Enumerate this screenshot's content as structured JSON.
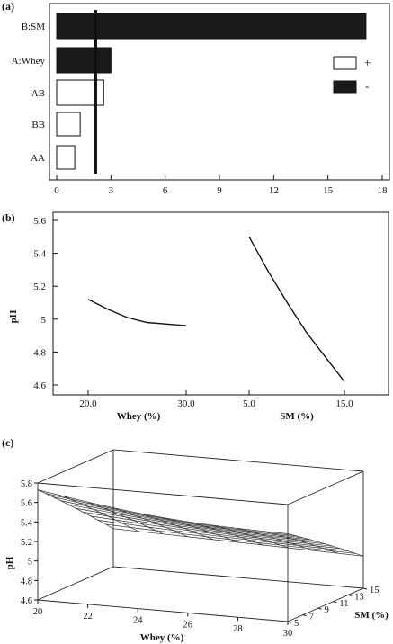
{
  "panels": [
    {
      "label": "(a)",
      "chart_data": {
        "type": "bar",
        "orientation": "horizontal",
        "categories": [
          "B:SM",
          "A:Whey",
          "AB",
          "BB",
          "AA"
        ],
        "values": [
          17.1,
          3.0,
          2.6,
          1.3,
          1.0
        ],
        "signs": [
          "-",
          "-",
          "+",
          "+",
          "+"
        ],
        "reference_line": 2.16,
        "xlim": [
          0,
          18
        ],
        "xticks": [
          0,
          3,
          6,
          9,
          12,
          15,
          18
        ],
        "legend": {
          "position": "right",
          "entries": [
            {
              "sign": "+",
              "label": "+"
            },
            {
              "sign": "-",
              "label": "-"
            }
          ]
        },
        "colors": {
          "positive": "#ffffff",
          "negative": "#1a1a1a"
        }
      }
    },
    {
      "label": "(b)",
      "chart_data": {
        "type": "line",
        "ylabel": "pH",
        "ylim": [
          4.6,
          5.6
        ],
        "yticks": [
          "4.6",
          "4.8",
          "5",
          "5.2",
          "5.4",
          "5.6"
        ],
        "factors": [
          {
            "xlabel": "Whey (%)",
            "xticks": [
              "20.0",
              "30.0"
            ],
            "x": [
              20,
              22,
              24,
              26,
              28,
              30
            ],
            "y": [
              5.12,
              5.06,
              5.01,
              4.98,
              4.97,
              4.96
            ]
          },
          {
            "xlabel": "SM (%)",
            "xticks": [
              "5.0",
              "15.0"
            ],
            "x": [
              5,
              7,
              9,
              11,
              13,
              15
            ],
            "y": [
              5.5,
              5.29,
              5.1,
              4.92,
              4.77,
              4.62
            ]
          }
        ]
      }
    },
    {
      "label": "(c)",
      "chart_data": {
        "type": "surface",
        "xlabel": "Whey (%)",
        "ylabel": "SM (%)",
        "zlabel": "pH",
        "xlim": [
          20,
          30
        ],
        "ylim": [
          5,
          15
        ],
        "zlim": [
          4.6,
          5.8
        ],
        "xticks": [
          "20",
          "22",
          "24",
          "26",
          "28",
          "30"
        ],
        "yticks": [
          "5",
          "7",
          "9",
          "11",
          "13",
          "15"
        ],
        "zticks": [
          "4.6",
          "4.8",
          "5",
          "5.2",
          "5.4",
          "5.6",
          "5.8"
        ],
        "corner_values": {
          "whey20_sm5": 5.73,
          "whey30_sm5": 5.5,
          "whey20_sm15": 4.99,
          "whey30_sm15": 4.93
        }
      }
    }
  ]
}
